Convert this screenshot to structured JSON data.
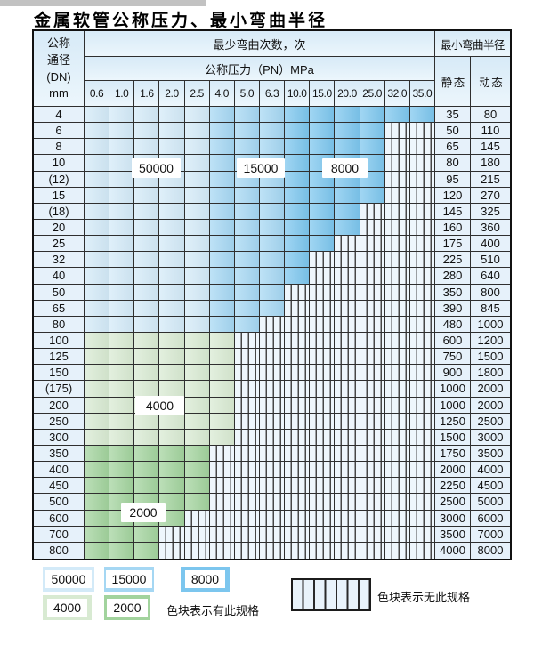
{
  "page": {
    "title": "金属软管公称压力、最小弯曲半径"
  },
  "table": {
    "dn_header": [
      "公称",
      "通径",
      "(DN)",
      "mm"
    ],
    "bend_times_header": "最少弯曲次数，次",
    "pressure_header": "公称压力（PN）MPa",
    "radius_header": "最小弯曲半径",
    "static_header": "静 态",
    "dynamic_header": "动 态",
    "pressures": [
      "0.6",
      "1.0",
      "1.6",
      "2.0",
      "2.5",
      "4.0",
      "5.0",
      "6.3",
      "10.0",
      "15.0",
      "20.0",
      "25.0",
      "32.0",
      "35.0"
    ],
    "blue_column_bands": [
      {
        "cycles": "50000",
        "from": 0,
        "to": 4
      },
      {
        "cycles": "15000",
        "from": 5,
        "to": 7
      },
      {
        "cycles": "8000",
        "from": 8,
        "to": 13
      }
    ],
    "rows": [
      {
        "dn": "4",
        "colored": 14,
        "cycles": "by_column",
        "static": "35",
        "dynamic": "80"
      },
      {
        "dn": "6",
        "colored": 12,
        "cycles": "by_column",
        "static": "50",
        "dynamic": "110"
      },
      {
        "dn": "8",
        "colored": 12,
        "cycles": "by_column",
        "static": "65",
        "dynamic": "145"
      },
      {
        "dn": "10",
        "colored": 12,
        "cycles": "by_column",
        "static": "80",
        "dynamic": "180"
      },
      {
        "dn": "(12)",
        "colored": 12,
        "cycles": "by_column",
        "static": "95",
        "dynamic": "215"
      },
      {
        "dn": "15",
        "colored": 12,
        "cycles": "by_column",
        "static": "120",
        "dynamic": "270"
      },
      {
        "dn": "(18)",
        "colored": 11,
        "cycles": "by_column",
        "static": "145",
        "dynamic": "325"
      },
      {
        "dn": "20",
        "colored": 11,
        "cycles": "by_column",
        "static": "160",
        "dynamic": "360"
      },
      {
        "dn": "25",
        "colored": 10,
        "cycles": "by_column",
        "static": "175",
        "dynamic": "400"
      },
      {
        "dn": "32",
        "colored": 9,
        "cycles": "by_column",
        "static": "225",
        "dynamic": "510"
      },
      {
        "dn": "40",
        "colored": 9,
        "cycles": "by_column",
        "static": "280",
        "dynamic": "640"
      },
      {
        "dn": "50",
        "colored": 8,
        "cycles": "by_column",
        "static": "350",
        "dynamic": "800"
      },
      {
        "dn": "65",
        "colored": 8,
        "cycles": "by_column",
        "static": "390",
        "dynamic": "845"
      },
      {
        "dn": "80",
        "colored": 7,
        "cycles": "by_column",
        "static": "480",
        "dynamic": "1000"
      },
      {
        "dn": "100",
        "colored": 6,
        "cycles": "4000",
        "static": "600",
        "dynamic": "1200"
      },
      {
        "dn": "125",
        "colored": 6,
        "cycles": "4000",
        "static": "750",
        "dynamic": "1500"
      },
      {
        "dn": "150",
        "colored": 6,
        "cycles": "4000",
        "static": "900",
        "dynamic": "1800"
      },
      {
        "dn": "(175)",
        "colored": 6,
        "cycles": "4000",
        "static": "1000",
        "dynamic": "2000"
      },
      {
        "dn": "200",
        "colored": 6,
        "cycles": "4000",
        "static": "1000",
        "dynamic": "2000"
      },
      {
        "dn": "250",
        "colored": 6,
        "cycles": "4000",
        "static": "1250",
        "dynamic": "2500"
      },
      {
        "dn": "300",
        "colored": 6,
        "cycles": "4000",
        "static": "1500",
        "dynamic": "3000"
      },
      {
        "dn": "350",
        "colored": 5,
        "cycles": "2000",
        "static": "1750",
        "dynamic": "3500"
      },
      {
        "dn": "400",
        "colored": 5,
        "cycles": "2000",
        "static": "2000",
        "dynamic": "4000"
      },
      {
        "dn": "450",
        "colored": 5,
        "cycles": "2000",
        "static": "2250",
        "dynamic": "4500"
      },
      {
        "dn": "500",
        "colored": 5,
        "cycles": "2000",
        "static": "2500",
        "dynamic": "5000"
      },
      {
        "dn": "600",
        "colored": 4,
        "cycles": "2000",
        "static": "3000",
        "dynamic": "6000"
      },
      {
        "dn": "700",
        "colored": 3,
        "cycles": "2000",
        "static": "3500",
        "dynamic": "7000"
      },
      {
        "dn": "800",
        "colored": 3,
        "cycles": "2000",
        "static": "4000",
        "dynamic": "8000"
      }
    ],
    "overlay_labels": [
      {
        "text": "50000"
      },
      {
        "text": "15000"
      },
      {
        "text": "8000"
      },
      {
        "text": "4000"
      },
      {
        "text": "2000"
      }
    ]
  },
  "colors": {
    "band_colors": {
      "50000": "#d3eaf8",
      "15000": "#a5d7f3",
      "8000": "#7cc6ee",
      "4000": "#d8ead2",
      "2000": "#a2d39d"
    }
  },
  "legend": {
    "swatches": [
      {
        "value": "50000"
      },
      {
        "value": "15000"
      },
      {
        "value": "8000"
      },
      {
        "value": "4000"
      },
      {
        "value": "2000"
      }
    ],
    "has_spec_text": "色块表示有此规格",
    "no_spec_text": "色块表示无此规格"
  }
}
